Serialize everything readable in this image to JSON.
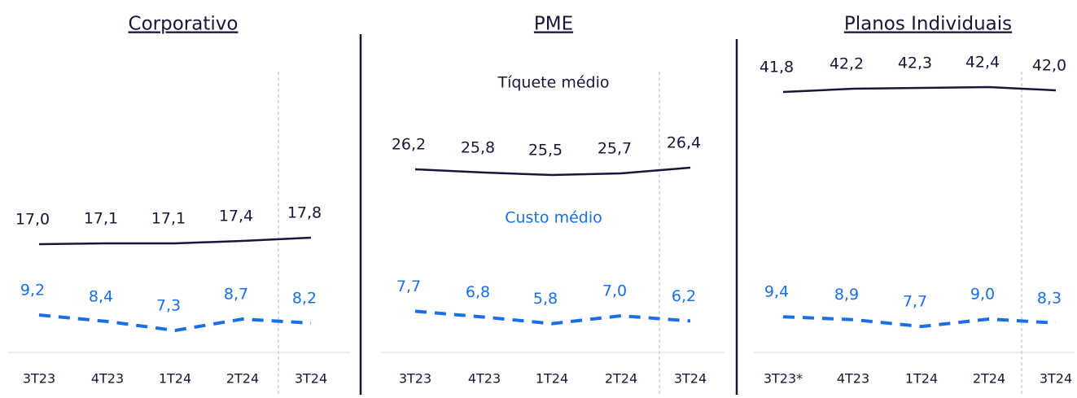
{
  "chart_data": [
    {
      "type": "line",
      "title": "Corporativo",
      "categories": [
        "3T23",
        "4T23",
        "1T24",
        "2T24",
        "3T24"
      ],
      "series": [
        {
          "color": "#17173a",
          "style": "solid",
          "values": [
            17.0,
            17.1,
            17.1,
            17.4,
            17.8
          ],
          "value_labels": [
            "17,0",
            "17,1",
            "17,1",
            "17,4",
            "17,8"
          ]
        },
        {
          "color": "#1a6ee8",
          "style": "dashed",
          "values": [
            9.2,
            8.4,
            7.3,
            8.7,
            8.2
          ],
          "value_labels": [
            "9,2",
            "8,4",
            "7,3",
            "8,7",
            "8,2"
          ]
        }
      ]
    },
    {
      "type": "line",
      "title": "PME",
      "categories": [
        "3T23",
        "4T23",
        "1T24",
        "2T24",
        "3T24"
      ],
      "series": [
        {
          "name": "Tíquete médio",
          "color": "#17173a",
          "style": "solid",
          "values": [
            26.2,
            25.8,
            25.5,
            25.7,
            26.4
          ],
          "value_labels": [
            "26,2",
            "25,8",
            "25,5",
            "25,7",
            "26,4"
          ]
        },
        {
          "name": "Custo médio",
          "color": "#1a6ee8",
          "style": "dashed",
          "values": [
            7.7,
            6.8,
            5.8,
            7.0,
            6.2
          ],
          "value_labels": [
            "7,7",
            "6,8",
            "5,8",
            "7,0",
            "6,2"
          ]
        }
      ]
    },
    {
      "type": "line",
      "title": "Planos Individuais",
      "categories": [
        "3T23*",
        "4T23",
        "1T24",
        "2T24",
        "3T24"
      ],
      "series": [
        {
          "color": "#17173a",
          "style": "solid",
          "values": [
            41.8,
            42.2,
            42.3,
            42.4,
            42.0
          ],
          "value_labels": [
            "41,8",
            "42,2",
            "42,3",
            "42,4",
            "42,0"
          ]
        },
        {
          "color": "#1a6ee8",
          "style": "dashed",
          "values": [
            9.4,
            8.9,
            7.7,
            9.0,
            8.3
          ],
          "value_labels": [
            "9,4",
            "8,9",
            "7,7",
            "9,0",
            "8,3"
          ]
        }
      ]
    }
  ]
}
